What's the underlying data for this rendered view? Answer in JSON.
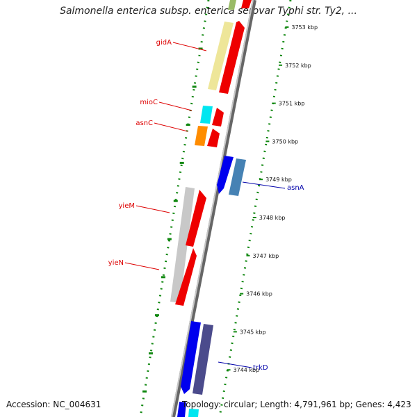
{
  "title": "Salmonella enterica subsp. enterica serovar Typhi str. Ty2, ...",
  "footer": {
    "accession": "Accession: NC_004631",
    "topology": "Topology: circular; Length: 4,791,961 bp; Genes: 4,423"
  },
  "ticks": [
    {
      "label": "3753 kbp",
      "kbp": 3753
    },
    {
      "label": "3752 kbp",
      "kbp": 3752
    },
    {
      "label": "3751 kbp",
      "kbp": 3751
    },
    {
      "label": "3750 kbp",
      "kbp": 3750
    },
    {
      "label": "3749 kbp",
      "kbp": 3749
    },
    {
      "label": "3748 kbp",
      "kbp": 3748
    },
    {
      "label": "3747 kbp",
      "kbp": 3747
    },
    {
      "label": "3746 kbp",
      "kbp": 3746
    },
    {
      "label": "3745 kbp",
      "kbp": 3745
    },
    {
      "label": "3744 kbp",
      "kbp": 3744
    }
  ],
  "gene_labels": [
    {
      "name": "gidA",
      "strand": "reverse",
      "color": "#dd0000"
    },
    {
      "name": "mioC",
      "strand": "reverse",
      "color": "#dd0000"
    },
    {
      "name": "asnC",
      "strand": "reverse",
      "color": "#dd0000"
    },
    {
      "name": "asnA",
      "strand": "forward",
      "color": "#0000aa"
    },
    {
      "name": "yieM",
      "strand": "reverse",
      "color": "#dd0000"
    },
    {
      "name": "yieN",
      "strand": "reverse",
      "color": "#dd0000"
    },
    {
      "name": "trkD",
      "strand": "forward",
      "color": "#0000aa"
    }
  ],
  "colors": {
    "backbone": "#888888",
    "gc_dots": "#118811",
    "cds_reverse": "#ee0000",
    "cds_forward": "#0000ee",
    "gene_yellow": "#eee699",
    "gene_gray": "#c8c8c8",
    "gene_cyan": "#00e6f0",
    "gene_orange": "#ff8c00",
    "gene_steel": "#4682b4",
    "gene_slate": "#4b4b8c"
  }
}
